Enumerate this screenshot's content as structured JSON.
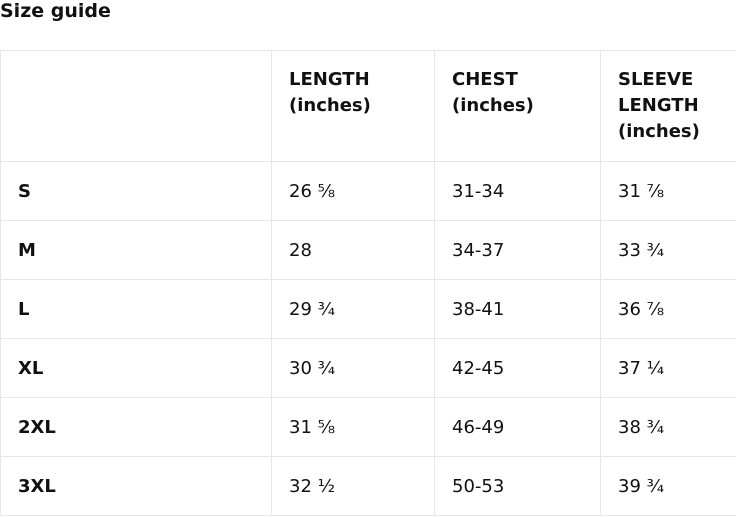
{
  "header": {
    "title": "Size guide"
  },
  "table": {
    "columns": [
      "LENGTH (inches)",
      "CHEST (inches)",
      "SLEEVE LENGTH (inches)"
    ],
    "rows": [
      [
        "S",
        "26 ⅝",
        "31-34",
        "31 ⅞"
      ],
      [
        "M",
        "28",
        "34-37",
        "33 ¾"
      ],
      [
        "L",
        "29 ¾",
        "38-41",
        "36 ⅞"
      ],
      [
        "XL",
        "30 ¾",
        "42-45",
        "37 ¼"
      ],
      [
        "2XL",
        "31 ⅝",
        "46-49",
        "38 ¾"
      ],
      [
        "3XL",
        "32 ½",
        "50-53",
        "39 ¾"
      ]
    ]
  }
}
